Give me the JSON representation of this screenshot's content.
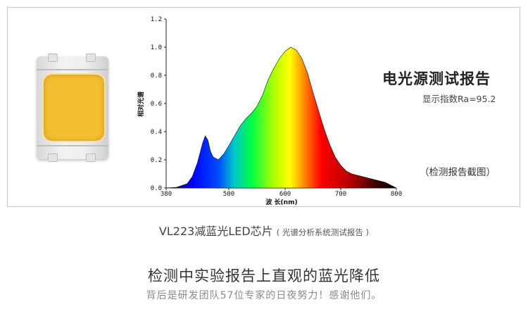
{
  "report": {
    "title": "电光源测试报告",
    "subtitle": "显示指数Ra=95.2",
    "note": "（检测报告截图）"
  },
  "chart_data": {
    "type": "area",
    "xlabel": "波 长(nm)",
    "ylabel": "相对光谱",
    "xlim": [
      380,
      800
    ],
    "ylim": [
      0,
      1.2
    ],
    "x_ticks": [
      "380",
      "500",
      "600",
      "700",
      "800"
    ],
    "y_ticks": [
      "0.0",
      "0.2",
      "0.4",
      "0.6",
      "0.8",
      "1.0",
      "1.2"
    ],
    "x": [
      380,
      400,
      420,
      430,
      440,
      450,
      455,
      460,
      465,
      470,
      480,
      490,
      500,
      510,
      520,
      530,
      540,
      550,
      560,
      570,
      580,
      590,
      600,
      610,
      620,
      630,
      640,
      650,
      660,
      670,
      680,
      690,
      700,
      710,
      720,
      730,
      740,
      750,
      760,
      770,
      780,
      790,
      800
    ],
    "values": [
      0,
      0.005,
      0.03,
      0.08,
      0.18,
      0.32,
      0.37,
      0.34,
      0.26,
      0.22,
      0.2,
      0.24,
      0.3,
      0.37,
      0.44,
      0.49,
      0.53,
      0.58,
      0.66,
      0.77,
      0.85,
      0.92,
      0.97,
      1.0,
      0.98,
      0.92,
      0.82,
      0.68,
      0.55,
      0.42,
      0.31,
      0.22,
      0.16,
      0.12,
      0.1,
      0.09,
      0.08,
      0.07,
      0.06,
      0.05,
      0.04,
      0.02,
      0.0
    ]
  },
  "caption": {
    "model": "VL223减蓝光LED芯片",
    "model_note": "( 光谱分析系统测试报告 )"
  },
  "headline": "检测中实验报告上直观的蓝光降低",
  "subline": "背后是研发团队57位专家的日夜努力！感谢他们。"
}
